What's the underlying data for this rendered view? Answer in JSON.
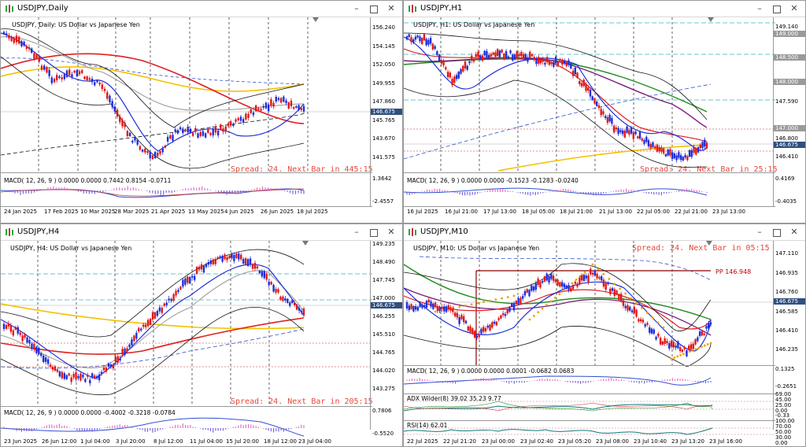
{
  "windows": [
    {
      "title": "USDJPY,Daily",
      "info": "USDJPY, Daily: US Dollar vs Japanese Yen",
      "spread": "Spread: 24. Next Bar in 445:15",
      "macd": "MACD( 12, 26, 9 ) 0.0000 0.0000 0.7442 0.8154 -0.0711",
      "price_axis": [
        "156.240",
        "154.145",
        "152.050",
        "149.955",
        "147.860",
        "146.675",
        "145.765",
        "143.670",
        "141.575"
      ],
      "current_price": "146.675",
      "macd_axis": [
        "1.3642",
        "-2.4557"
      ],
      "time_axis": [
        "24 Jan 2025",
        "17 Feb 2025",
        "10 Mar 2025",
        "28 Mar 2025",
        "21 Apr 2025",
        "13 May 2025",
        "4 Jun 2025",
        "26 Jun 2025",
        "18 Jul 2025"
      ]
    },
    {
      "title": "USDJPY,H1",
      "info": "USDJPY, H1: US Dollar vs Japanese Yen",
      "spread": "Spread: 24. Next Bar in 25:15",
      "macd": "MACD( 12, 26, 9 ) 0.0000 0.0000 -0.1523 -0.1283 -0.0240",
      "price_axis": [
        "149.140",
        "149.000",
        "148.500",
        "148.000",
        "147.590",
        "147.000",
        "146.800",
        "146.675",
        "146.410"
      ],
      "current_price": "146.675",
      "macd_axis": [
        "0.4169",
        "-0.4035"
      ],
      "time_axis": [
        "16 Jul 2025",
        "16 Jul 21:00",
        "17 Jul 13:00",
        "18 Jul 05:00",
        "18 Jul 21:00",
        "21 Jul 13:00",
        "22 Jul 05:00",
        "22 Jul 21:00",
        "23 Jul 13:00"
      ]
    },
    {
      "title": "USDJPY,H4",
      "info": "USDJPY, H4: US Dollar vs Japanese Yen",
      "spread": "Spread: 24. Next Bar in 205:15",
      "macd": "MACD( 12, 26, 9 ) 0.0000 0.0000 -0.4002 -0.3218 -0.0784",
      "price_axis": [
        "149.235",
        "148.490",
        "147.745",
        "147.000",
        "146.675",
        "146.255",
        "145.510",
        "144.765",
        "144.020",
        "143.275"
      ],
      "current_price": "146.675",
      "macd_axis": [
        "0.7806",
        "-0.5520"
      ],
      "time_axis": [
        "23 Jun 2025",
        "26 Jun 12:00",
        "1 Jul 04:00",
        "3 Jul 20:00",
        "8 Jul 12:00",
        "11 Jul 04:00",
        "15 Jul 20:00",
        "18 Jul 12:00",
        "23 Jul 04:00"
      ]
    },
    {
      "title": "USDJPY,M10",
      "info": "USDJPY, M10: US Dollar vs Japanese Yen",
      "spread": "Spread: 24. Next Bar in 05:15",
      "pp": "PP 146.948",
      "macd": "MACD( 12, 26, 9 ) 0.0000 0.0000 0.0001 -0.0682 0.0683",
      "adx": "ADX Wilder(8) 39.02 35.23 9.77",
      "rsi": "RSI(14) 62.01",
      "price_axis": [
        "147.110",
        "146.935",
        "146.760",
        "146.675",
        "146.585",
        "146.410",
        "146.235"
      ],
      "current_price": "146.675",
      "macd_axis": [
        "0.1325",
        "-0.2651"
      ],
      "adx_axis": [
        "69.00",
        "45.00",
        "25.00",
        "0.00",
        "-0.33"
      ],
      "rsi_axis": [
        "100.00",
        "70.00",
        "50.00",
        "30.00",
        "0.00"
      ],
      "time_axis": [
        "22 Jul 2025",
        "22 Jul 21:20",
        "23 Jul 00:00",
        "23 Jul 02:40",
        "23 Jul 05:20",
        "23 Jul 08:00",
        "23 Jul 10:40",
        "23 Jul 13:20",
        "23 Jul 16:00"
      ]
    }
  ],
  "colors": {
    "bull": "#1f2fd8",
    "bear": "#e01818",
    "ma_red": "#e02020",
    "ma_yellow": "#f2c200",
    "ma_green": "#1e8c1e",
    "ma_purple": "#7a1e7a",
    "bands": "#202020",
    "spread": "#e8483a",
    "price_tag": "#2f4f7f"
  }
}
